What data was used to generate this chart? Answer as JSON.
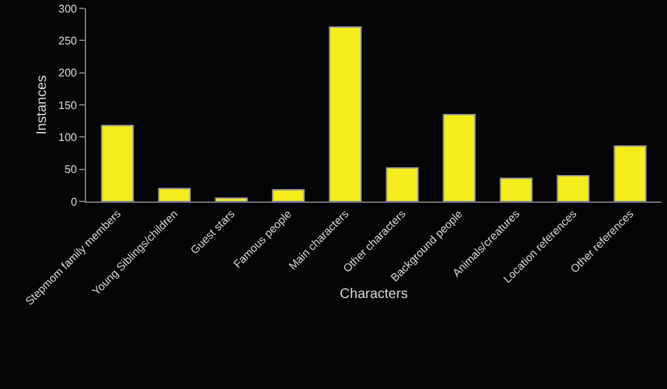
{
  "chart_data": {
    "type": "bar",
    "xlabel": "Characters",
    "ylabel": "Instances",
    "categories": [
      "Stepmom family members",
      "Young Siblings/children",
      "Guest stars",
      "Famous people",
      "Main characters",
      "Other characters",
      "Background people",
      "Animals/creatures",
      "Location references",
      "Other references"
    ],
    "values": [
      118,
      20,
      5,
      18,
      271,
      52,
      135,
      36,
      40,
      86
    ],
    "color": "#f5ed1d",
    "ylim": [
      0,
      300
    ],
    "yticks": [
      0,
      50,
      100,
      150,
      200,
      250,
      300
    ]
  }
}
